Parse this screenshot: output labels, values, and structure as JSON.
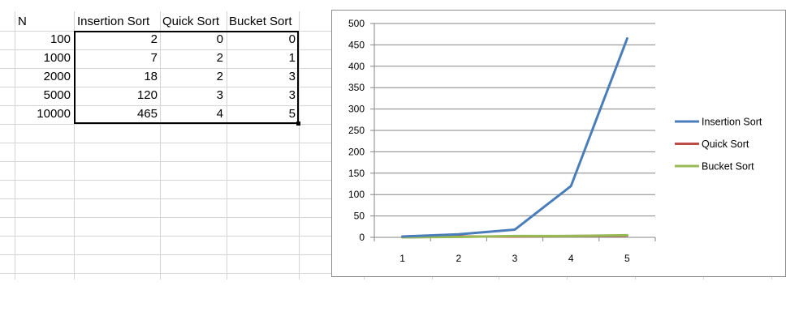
{
  "table": {
    "headers": [
      "N",
      "Insertion Sort",
      "Quick Sort",
      "Bucket Sort"
    ],
    "rows": [
      [
        "100",
        "2",
        "0",
        "0"
      ],
      [
        "1000",
        "7",
        "2",
        "1"
      ],
      [
        "2000",
        "18",
        "2",
        "3"
      ],
      [
        "5000",
        "120",
        "3",
        "3"
      ],
      [
        "10000",
        "465",
        "4",
        "5"
      ]
    ]
  },
  "colors": {
    "insertion": "#4a7ebb",
    "quick": "#be4b48",
    "bucket": "#98b954",
    "gridline": "#d4d4d4",
    "chart_grid": "#868686"
  },
  "chart_data": {
    "type": "line",
    "title": "",
    "xlabel": "",
    "ylabel": "",
    "categories": [
      "1",
      "2",
      "3",
      "4",
      "5"
    ],
    "ylim": [
      0,
      500
    ],
    "yticks": [
      "0",
      "50",
      "100",
      "150",
      "200",
      "250",
      "300",
      "350",
      "400",
      "450",
      "500"
    ],
    "grid": true,
    "legend_position": "right",
    "series": [
      {
        "name": "Insertion Sort",
        "values": [
          2,
          7,
          18,
          120,
          465
        ],
        "color": "#4a7ebb"
      },
      {
        "name": "Quick Sort",
        "values": [
          0,
          2,
          2,
          3,
          4
        ],
        "color": "#be4b48"
      },
      {
        "name": "Bucket Sort",
        "values": [
          0,
          1,
          3,
          3,
          5
        ],
        "color": "#98b954"
      }
    ]
  }
}
